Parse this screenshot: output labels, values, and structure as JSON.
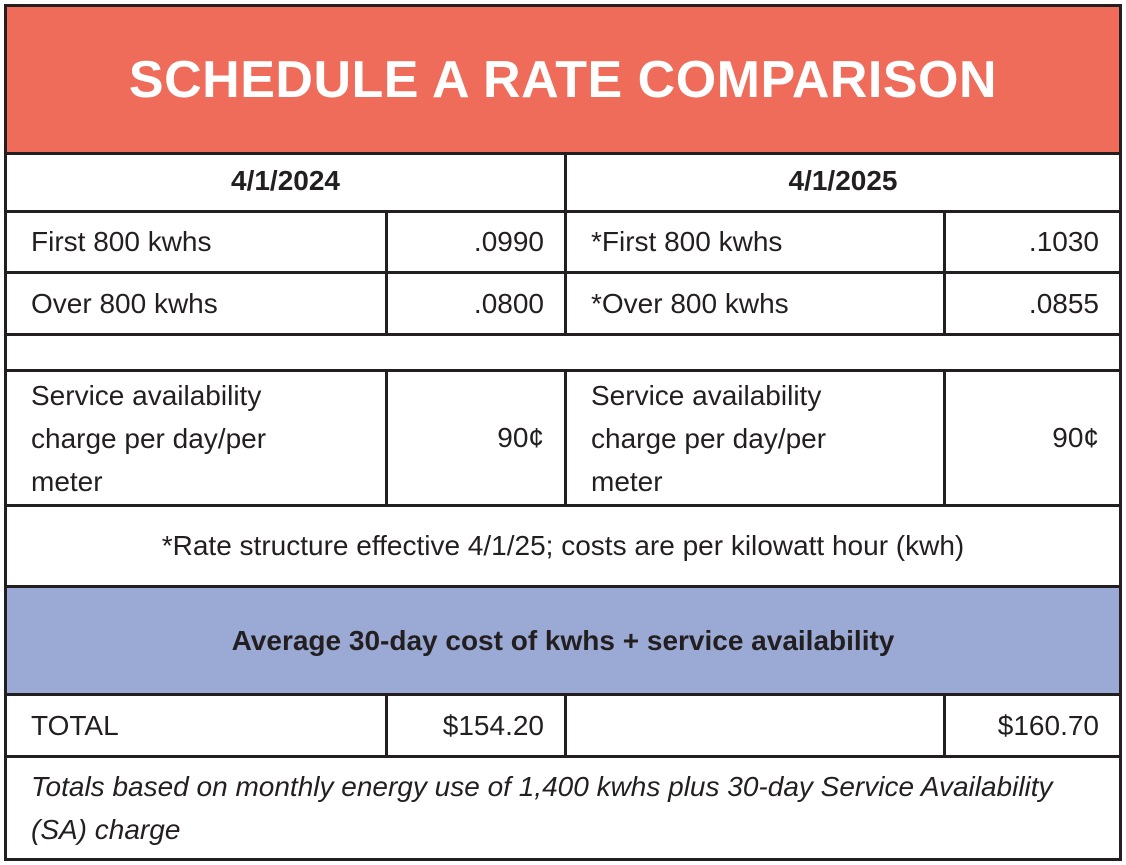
{
  "title": "SCHEDULE A RATE COMPARISON",
  "columns": {
    "left_date": "4/1/2024",
    "right_date": "4/1/2025"
  },
  "rows": [
    {
      "left_label": "First 800 kwhs",
      "left_value": ".0990",
      "right_label": "*First 800 kwhs",
      "right_value": ".1030"
    },
    {
      "left_label": "Over 800 kwhs",
      "left_value": ".0800",
      "right_label": "*Over 800 kwhs",
      "right_value": ".0855"
    }
  ],
  "service": {
    "left_label": "Service availability charge per day/per meter",
    "left_value": "90¢",
    "right_label": "Service availability charge per day/per meter",
    "right_value": "90¢"
  },
  "note": "*Rate structure effective 4/1/25; costs are per kilowatt hour (kwh)",
  "average_header": "Average 30-day cost of kwhs + service availability",
  "total": {
    "label": "TOTAL",
    "left_value": "$154.20",
    "right_value": "$160.70"
  },
  "footnote": "Totals based on monthly energy use of 1,400 kwhs plus 30-day Service Availability (SA) charge",
  "colors": {
    "title_bg": "#ef6b5a",
    "average_bg": "#9aaad4",
    "border": "#231f20"
  }
}
